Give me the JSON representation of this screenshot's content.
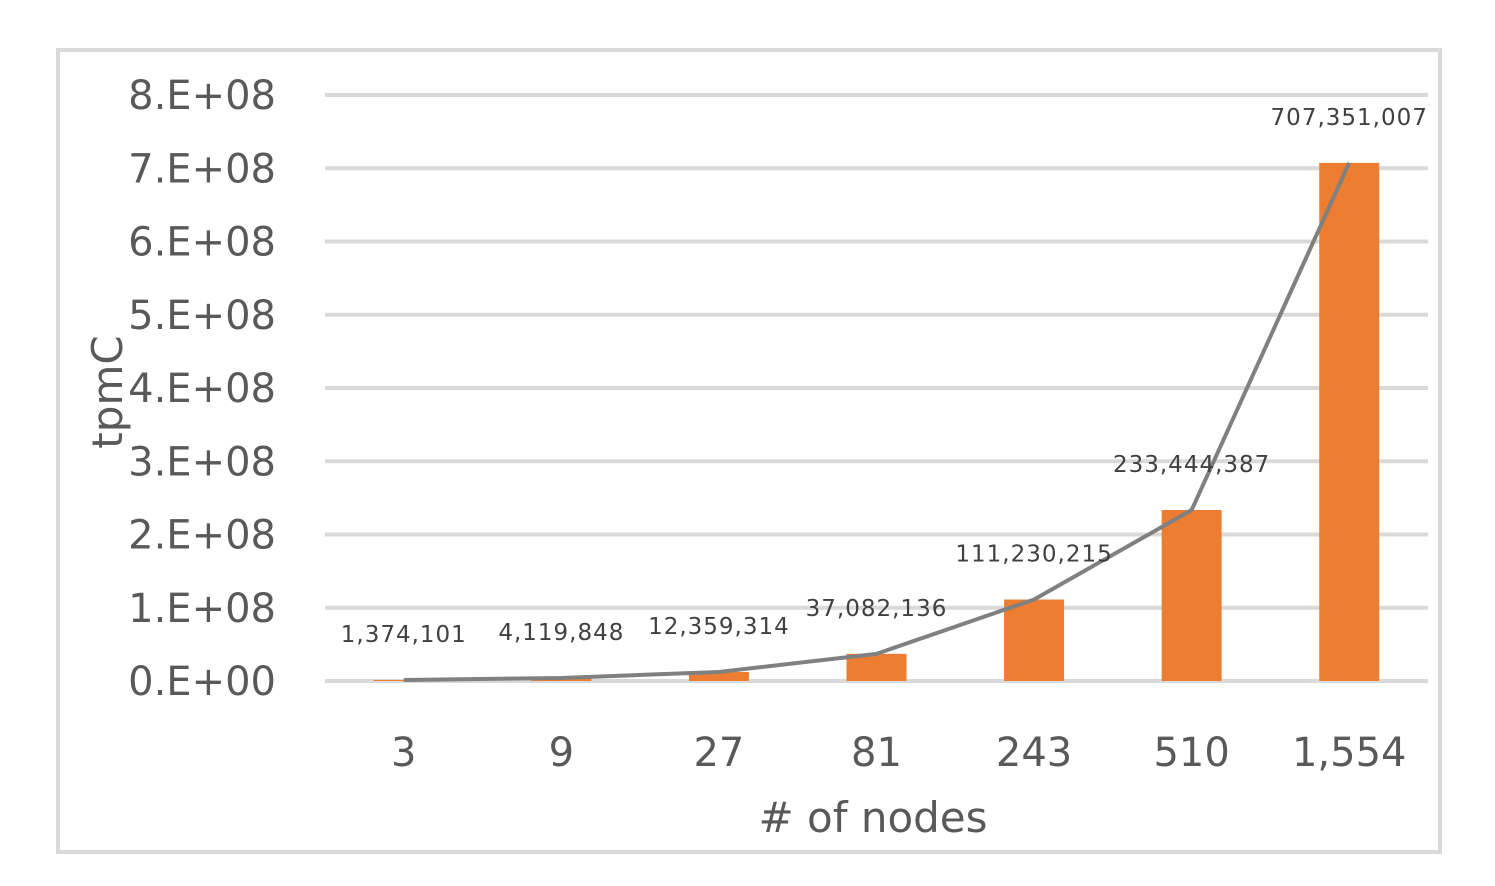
{
  "chart_data": {
    "type": "bar",
    "title": "",
    "xlabel": "# of nodes",
    "ylabel": "tpmC",
    "categories": [
      "3",
      "9",
      "27",
      "81",
      "243",
      "510",
      "1,554"
    ],
    "series": [
      {
        "values": [
          1374101,
          4119848,
          12359314,
          37082136,
          111230215,
          233444387,
          707351007
        ],
        "render": "bar",
        "color": "#ed7d31"
      },
      {
        "values": [
          1374101,
          4119848,
          12359314,
          37082136,
          111230215,
          233444387,
          707351007
        ],
        "render": "line",
        "color": "#808080"
      }
    ],
    "data_labels": [
      "1,374,101",
      "4,119,848",
      "12,359,314",
      "37,082,136",
      "111,230,215",
      "233,444,387",
      "707,351,007"
    ],
    "y_ticks": [
      "0.E+00",
      "1.E+08",
      "2.E+08",
      "3.E+08",
      "4.E+08",
      "5.E+08",
      "6.E+08",
      "7.E+08",
      "8.E+08"
    ],
    "ylim": [
      0,
      800000000
    ],
    "grid": true,
    "legend": "none",
    "colors": {
      "bar": "#ed7d31",
      "line": "#808080",
      "grid": "#d9d9d9",
      "text": "#595959",
      "frame": "#d9d9d9"
    }
  }
}
